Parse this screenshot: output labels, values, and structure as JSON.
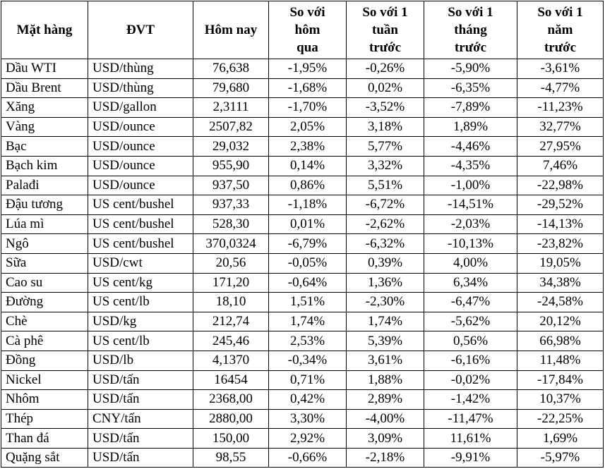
{
  "table": {
    "header": [
      [
        "Mặt hàng"
      ],
      [
        "ĐVT"
      ],
      [
        "Hôm nay"
      ],
      [
        "So với",
        "hôm",
        "qua"
      ],
      [
        "So với 1",
        "tuần",
        "trước"
      ],
      [
        "So với 1",
        "tháng",
        "trước"
      ],
      [
        "So với 1",
        "năm",
        "trước"
      ]
    ],
    "rows": [
      [
        "Dầu WTI",
        "USD/thùng",
        "76,638",
        "-1,95%",
        "-0,26%",
        "-5,90%",
        "-3,61%"
      ],
      [
        "Dầu Brent",
        "USD/thùng",
        "79,680",
        "-1,68%",
        "0,02%",
        "-6,35%",
        "-4,77%"
      ],
      [
        "Xăng",
        "USD/gallon",
        "2,3111",
        "-1,70%",
        "-3,52%",
        "-7,89%",
        "-11,23%"
      ],
      [
        "Vàng",
        "USD/ounce",
        "2507,82",
        "2,05%",
        "3,18%",
        "1,89%",
        "32,77%"
      ],
      [
        "Bạc",
        "USD/ounce",
        "29,032",
        "2,38%",
        "5,77%",
        "-4,46%",
        "27,95%"
      ],
      [
        "Bạch kim",
        "USD/ounce",
        "955,90",
        "0,14%",
        "3,32%",
        "-4,35%",
        "7,46%"
      ],
      [
        "Palađi",
        "USD/ounce",
        "937,50",
        "0,86%",
        "5,51%",
        "-1,00%",
        "-22,98%"
      ],
      [
        "Đậu tương",
        "US cent/bushel",
        "937,33",
        "-1,18%",
        "-6,72%",
        "-14,51%",
        "-29,52%"
      ],
      [
        "Lúa mì",
        "US cent/bushel",
        "528,30",
        "0,01%",
        "-2,62%",
        "-2,03%",
        "-14,13%"
      ],
      [
        "Ngô",
        "US cent/bushel",
        "370,0324",
        "-6,79%",
        "-6,32%",
        "-10,13%",
        "-23,82%"
      ],
      [
        "Sữa",
        "USD/cwt",
        "20,56",
        "-0,05%",
        "0,39%",
        "4,00%",
        "19,05%"
      ],
      [
        "Cao su",
        "US cent/kg",
        "171,20",
        "-0,64%",
        "1,36%",
        "6,34%",
        "34,38%"
      ],
      [
        "Đường",
        "US cent/lb",
        "18,10",
        "1,51%",
        "-2,30%",
        "-6,47%",
        "-24,58%"
      ],
      [
        "Chè",
        "USD/kg",
        "212,74",
        "1,74%",
        "1,74%",
        "-5,62%",
        "20,12%"
      ],
      [
        "Cà phê",
        "US cent/lb",
        "245,46",
        "2,53%",
        "5,39%",
        "0,56%",
        "66,98%"
      ],
      [
        "Đồng",
        "USD/lb",
        "4,1370",
        "-0,34%",
        "3,61%",
        "-6,16%",
        "11,48%"
      ],
      [
        "Nickel",
        "USD/tấn",
        "16454",
        "0,71%",
        "1,88%",
        "-0,02%",
        "-17,84%"
      ],
      [
        "Nhôm",
        "USD/tấn",
        "2368,00",
        "0,42%",
        "2,89%",
        "-1,42%",
        "10,37%"
      ],
      [
        "Thép",
        "CNY/tấn",
        "2880,00",
        "3,30%",
        "-4,00%",
        "-11,47%",
        "-22,25%"
      ],
      [
        "Than đá",
        "USD/tấn",
        "150,00",
        "2,92%",
        "3,09%",
        "11,61%",
        "1,69%"
      ],
      [
        "Quặng sắt",
        "USD/tấn",
        "98,55",
        "-0,66%",
        "-2,18%",
        "-9,91%",
        "-5,97%"
      ]
    ]
  }
}
